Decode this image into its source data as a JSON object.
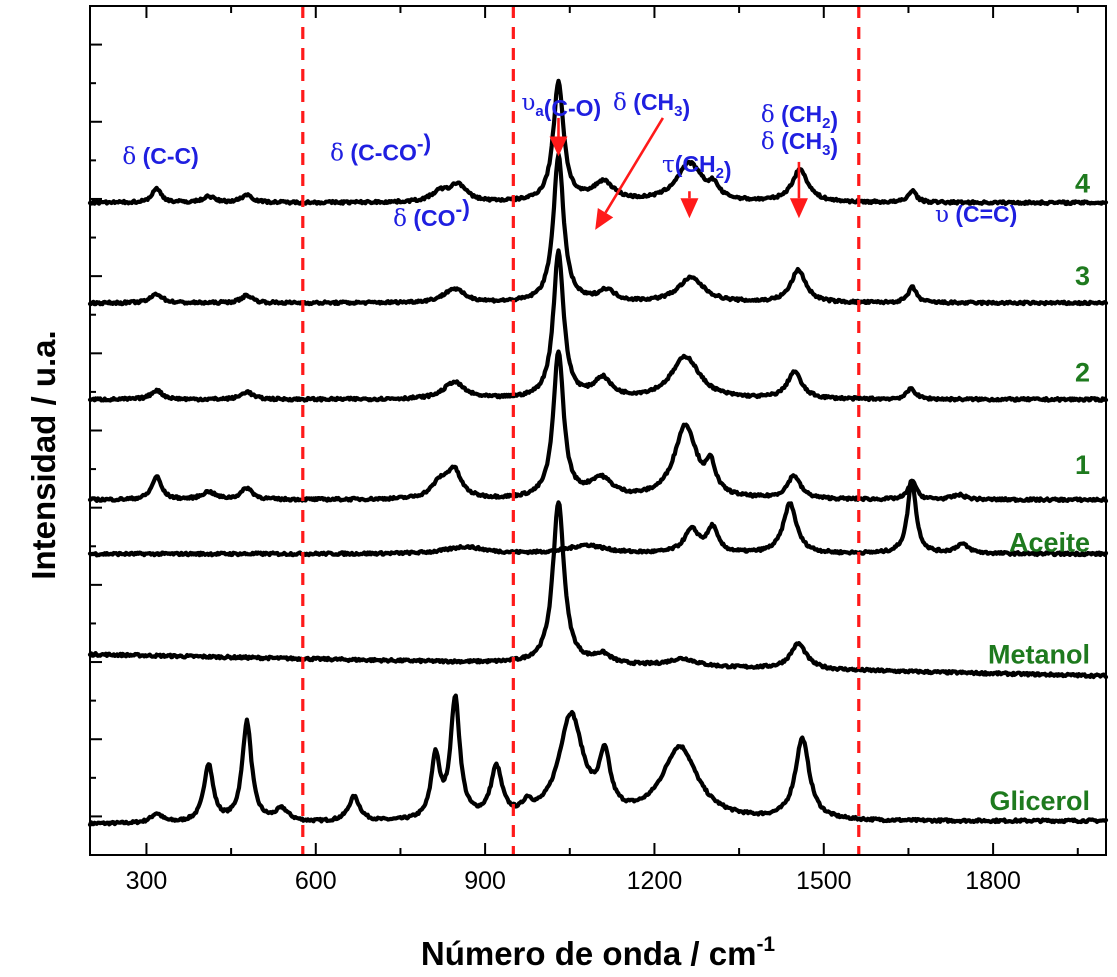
{
  "chart_data": {
    "type": "line",
    "xlabel": "Número de onda / cm",
    "xlabel_sup": "-1",
    "ylabel": "Intensidad / u.a.",
    "xlim": [
      200,
      2000
    ],
    "x_ticks": [
      300,
      600,
      900,
      1200,
      1500,
      1800
    ],
    "x_tick_labels": [
      "300",
      "600",
      "900",
      "1200",
      "1500",
      "1800"
    ],
    "y_ticks_visible": true,
    "y_tick_labels_visible": false,
    "grid": false,
    "dividers": [
      577,
      950,
      1562
    ],
    "band_labels": [
      {
        "id": "cc",
        "parts": [
          {
            "t": "δ",
            "sym": true
          },
          {
            "t": " (C-C)"
          }
        ],
        "x": 325,
        "y": 8.95
      },
      {
        "id": "cco",
        "parts": [
          {
            "t": "δ",
            "sym": true
          },
          {
            "t": " (C-CO"
          },
          {
            "t": "-",
            "sup": true
          },
          {
            "t": ")"
          }
        ],
        "x": 715,
        "y": 9.0
      },
      {
        "id": "co",
        "parts": [
          {
            "t": "δ",
            "sym": true
          },
          {
            "t": " (CO"
          },
          {
            "t": "-",
            "sup": true
          },
          {
            "t": ")"
          }
        ],
        "x": 805,
        "y": 8.15
      },
      {
        "id": "vco",
        "parts": [
          {
            "t": "υ",
            "sym": true
          },
          {
            "t": "a",
            "sub": true
          },
          {
            "t": "(C-O)"
          }
        ],
        "x": 1035,
        "y": 9.65
      },
      {
        "id": "dch3a",
        "parts": [
          {
            "t": "δ",
            "sym": true
          },
          {
            "t": " (CH"
          },
          {
            "t": "3",
            "sub": true
          },
          {
            "t": ")"
          }
        ],
        "x": 1195,
        "y": 9.65
      },
      {
        "id": "tch2",
        "parts": [
          {
            "t": "τ",
            "sym": true
          },
          {
            "t": "(CH"
          },
          {
            "t": "2",
            "sub": true
          },
          {
            "t": ")"
          }
        ],
        "x": 1275,
        "y": 8.85
      },
      {
        "id": "dch2",
        "parts": [
          {
            "t": "δ",
            "sym": true
          },
          {
            "t": " (CH"
          },
          {
            "t": "2",
            "sub": true
          },
          {
            "t": ")"
          }
        ],
        "x": 1457,
        "y": 9.5
      },
      {
        "id": "dch3b",
        "parts": [
          {
            "t": "δ",
            "sym": true
          },
          {
            "t": " (CH"
          },
          {
            "t": "3",
            "sub": true
          },
          {
            "t": ")"
          }
        ],
        "x": 1457,
        "y": 9.15
      },
      {
        "id": "vcc",
        "parts": [
          {
            "t": "υ",
            "sym": true
          },
          {
            "t": " (C=C)"
          }
        ],
        "x": 1770,
        "y": 8.2
      }
    ],
    "arrows": [
      {
        "from": [
          1030,
          9.55
        ],
        "to": [
          1030,
          9.05
        ]
      },
      {
        "from": [
          1215,
          9.55
        ],
        "to": [
          1095,
          8.1
        ]
      },
      {
        "from": [
          1262,
          8.6
        ],
        "to": [
          1262,
          8.25
        ]
      },
      {
        "from": [
          1456,
          8.98
        ],
        "to": [
          1456,
          8.25
        ]
      }
    ],
    "series": [
      {
        "name": "Glicerol",
        "baseline": 0.4,
        "offset_end": 0.04,
        "label_y": 0.7,
        "peaks": [
          [
            318,
            0.12,
            12
          ],
          [
            410,
            0.75,
            10
          ],
          [
            478,
            1.3,
            10
          ],
          [
            540,
            0.16,
            14
          ],
          [
            668,
            0.32,
            12
          ],
          [
            812,
            0.8,
            9
          ],
          [
            847,
            1.55,
            10
          ],
          [
            920,
            0.65,
            12
          ],
          [
            975,
            0.15,
            10
          ],
          [
            1052,
            1.35,
            26
          ],
          [
            1112,
            0.7,
            12
          ],
          [
            1245,
            0.95,
            38
          ],
          [
            1462,
            1.05,
            15
          ]
        ]
      },
      {
        "name": "Metanol",
        "baseline": 2.6,
        "offset_end": -0.28,
        "label_y": 2.6,
        "peaks": [
          [
            1030,
            2.1,
            12
          ],
          [
            1108,
            0.12,
            18
          ],
          [
            1250,
            0.1,
            30
          ],
          [
            1455,
            0.33,
            17
          ]
        ]
      },
      {
        "name": "Aceite",
        "baseline": 3.9,
        "offset_end": 0.0,
        "label_y": 4.05,
        "peaks": [
          [
            865,
            0.09,
            40
          ],
          [
            1080,
            0.11,
            40
          ],
          [
            1266,
            0.3,
            16
          ],
          [
            1303,
            0.32,
            11
          ],
          [
            1440,
            0.65,
            14
          ],
          [
            1656,
            0.95,
            9
          ],
          [
            1745,
            0.12,
            14
          ]
        ]
      },
      {
        "name": "1",
        "baseline": 4.6,
        "offset_end": 0.0,
        "label_y": 5.05,
        "peaks": [
          [
            318,
            0.3,
            10
          ],
          [
            410,
            0.1,
            14
          ],
          [
            478,
            0.15,
            12
          ],
          [
            820,
            0.2,
            18
          ],
          [
            845,
            0.35,
            15
          ],
          [
            1030,
            1.9,
            11
          ],
          [
            1105,
            0.25,
            25
          ],
          [
            1255,
            0.95,
            24
          ],
          [
            1300,
            0.35,
            10
          ],
          [
            1447,
            0.3,
            14
          ],
          [
            1657,
            0.25,
            8
          ],
          [
            1740,
            0.06,
            14
          ]
        ]
      },
      {
        "name": "2",
        "baseline": 5.9,
        "offset_end": 0.0,
        "label_y": 6.25,
        "peaks": [
          [
            318,
            0.12,
            12
          ],
          [
            478,
            0.1,
            12
          ],
          [
            845,
            0.22,
            22
          ],
          [
            1030,
            1.9,
            11
          ],
          [
            1108,
            0.25,
            18
          ],
          [
            1255,
            0.55,
            30
          ],
          [
            1448,
            0.35,
            15
          ],
          [
            1655,
            0.14,
            9
          ]
        ]
      },
      {
        "name": "3",
        "baseline": 7.15,
        "offset_end": 0.0,
        "label_y": 7.5,
        "peaks": [
          [
            318,
            0.12,
            12
          ],
          [
            478,
            0.1,
            12
          ],
          [
            845,
            0.18,
            22
          ],
          [
            1030,
            1.9,
            11
          ],
          [
            1115,
            0.15,
            18
          ],
          [
            1265,
            0.32,
            28
          ],
          [
            1455,
            0.42,
            16
          ],
          [
            1657,
            0.2,
            9
          ]
        ]
      },
      {
        "name": "4",
        "baseline": 8.45,
        "offset_end": 0.0,
        "label_y": 8.7,
        "peaks": [
          [
            318,
            0.18,
            10
          ],
          [
            410,
            0.08,
            12
          ],
          [
            478,
            0.1,
            12
          ],
          [
            820,
            0.12,
            18
          ],
          [
            852,
            0.22,
            18
          ],
          [
            1030,
            1.55,
            11
          ],
          [
            1110,
            0.25,
            22
          ],
          [
            1262,
            0.5,
            28
          ],
          [
            1305,
            0.15,
            10
          ],
          [
            1458,
            0.42,
            17
          ],
          [
            1657,
            0.16,
            8
          ]
        ]
      }
    ]
  }
}
